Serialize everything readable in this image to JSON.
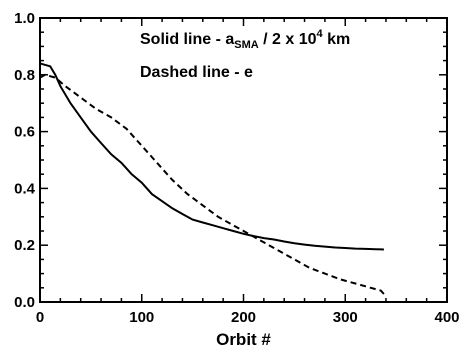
{
  "chart_data": {
    "type": "line",
    "xlabel": "Orbit #",
    "ylabel": "",
    "xlim": [
      0,
      400
    ],
    "ylim": [
      0.0,
      1.0
    ],
    "x_ticks": [
      0,
      100,
      200,
      300,
      400
    ],
    "y_ticks": [
      0.0,
      0.2,
      0.4,
      0.6,
      0.8,
      1.0
    ],
    "x_tick_labels": [
      "0",
      "100",
      "200",
      "300",
      "400"
    ],
    "y_tick_labels": [
      "0.0",
      "0.2",
      "0.4",
      "0.6",
      "0.8",
      "1.0"
    ],
    "grid": false,
    "legend": {
      "solid_prefix": "Solid line - a",
      "solid_subscript": "SMA",
      "solid_middle": " / 2 x 10",
      "solid_superscript": "4",
      "solid_suffix": " km",
      "dashed": "Dashed line - e"
    },
    "series": [
      {
        "style": "solid",
        "x": [
          0,
          10,
          15,
          20,
          30,
          40,
          50,
          60,
          70,
          80,
          90,
          100,
          110,
          120,
          130,
          140,
          150,
          160,
          170,
          180,
          190,
          200,
          210,
          220,
          230,
          240,
          250,
          260,
          270,
          280,
          290,
          300,
          310,
          320,
          330,
          338
        ],
        "y": [
          0.84,
          0.83,
          0.8,
          0.76,
          0.7,
          0.65,
          0.6,
          0.56,
          0.52,
          0.49,
          0.45,
          0.42,
          0.38,
          0.355,
          0.33,
          0.31,
          0.29,
          0.28,
          0.27,
          0.26,
          0.25,
          0.24,
          0.232,
          0.225,
          0.22,
          0.213,
          0.207,
          0.202,
          0.198,
          0.195,
          0.192,
          0.19,
          0.188,
          0.187,
          0.186,
          0.185
        ]
      },
      {
        "style": "dashed",
        "x": [
          0,
          5,
          15,
          25,
          40,
          55,
          70,
          85,
          100,
          115,
          130,
          145,
          160,
          175,
          190,
          205,
          220,
          235,
          250,
          265,
          280,
          295,
          310,
          325,
          335,
          340
        ],
        "y": [
          0.79,
          0.8,
          0.79,
          0.76,
          0.72,
          0.68,
          0.65,
          0.61,
          0.55,
          0.49,
          0.43,
          0.38,
          0.34,
          0.3,
          0.27,
          0.24,
          0.21,
          0.18,
          0.15,
          0.12,
          0.1,
          0.08,
          0.065,
          0.05,
          0.04,
          0.02
        ]
      }
    ]
  }
}
